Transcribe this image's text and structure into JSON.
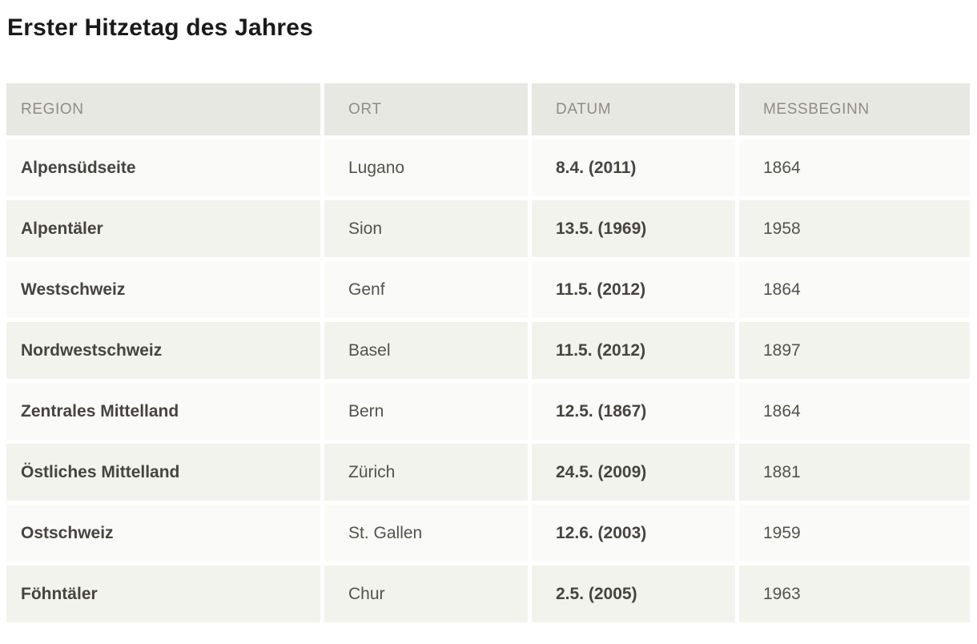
{
  "page": {
    "title": "Erster Hitzetag des Jahres"
  },
  "table": {
    "columns": [
      {
        "key": "region",
        "label": "REGION"
      },
      {
        "key": "ort",
        "label": "ORT"
      },
      {
        "key": "datum",
        "label": "DATUM"
      },
      {
        "key": "messbeginn",
        "label": "MESSBEGINN"
      }
    ],
    "rows": [
      {
        "region": "Alpensüdseite",
        "ort": "Lugano",
        "datum": "8.4. (2011)",
        "messbeginn": "1864"
      },
      {
        "region": "Alpentäler",
        "ort": "Sion",
        "datum": "13.5. (1969)",
        "messbeginn": "1958"
      },
      {
        "region": "Westschweiz",
        "ort": "Genf",
        "datum": "11.5. (2012)",
        "messbeginn": "1864"
      },
      {
        "region": "Nordwestschweiz",
        "ort": "Basel",
        "datum": "11.5. (2012)",
        "messbeginn": "1897"
      },
      {
        "region": "Zentrales Mittelland",
        "ort": "Bern",
        "datum": "12.5. (1867)",
        "messbeginn": "1864"
      },
      {
        "region": "Östliches Mittelland",
        "ort": "Zürich",
        "datum": "24.5. (2009)",
        "messbeginn": "1881"
      },
      {
        "region": "Ostschweiz",
        "ort": "St. Gallen",
        "datum": "12.6. (2003)",
        "messbeginn": "1959"
      },
      {
        "region": "Föhntäler",
        "ort": "Chur",
        "datum": "2.5. (2005)",
        "messbeginn": "1963"
      }
    ]
  },
  "colors": {
    "page_background": "#ffffff",
    "header_background": "#e8e8e2",
    "header_text": "#8e8d84",
    "row_light_background": "#fafaf8",
    "row_dark_background": "#f3f3ee",
    "text_bold": "#454441",
    "text_regular": "#53524d",
    "title_text": "#1a1a1a"
  },
  "chart_data": {
    "type": "table",
    "title": "Erster Hitzetag des Jahres",
    "columns": [
      "REGION",
      "ORT",
      "DATUM",
      "MESSBEGINN"
    ],
    "rows": [
      [
        "Alpensüdseite",
        "Lugano",
        "8.4. (2011)",
        "1864"
      ],
      [
        "Alpentäler",
        "Sion",
        "13.5. (1969)",
        "1958"
      ],
      [
        "Westschweiz",
        "Genf",
        "11.5. (2012)",
        "1864"
      ],
      [
        "Nordwestschweiz",
        "Basel",
        "11.5. (2012)",
        "1897"
      ],
      [
        "Zentrales Mittelland",
        "Bern",
        "12.5. (1867)",
        "1864"
      ],
      [
        "Östliches Mittelland",
        "Zürich",
        "24.5. (2009)",
        "1881"
      ],
      [
        "Ostschweiz",
        "St. Gallen",
        "12.6. (2003)",
        "1959"
      ],
      [
        "Föhntäler",
        "Chur",
        "2.5. (2005)",
        "1963"
      ]
    ],
    "layout_hints": {
      "header_row": true,
      "zebra_striping": true,
      "bold_columns": [
        "REGION",
        "DATUM"
      ]
    }
  }
}
